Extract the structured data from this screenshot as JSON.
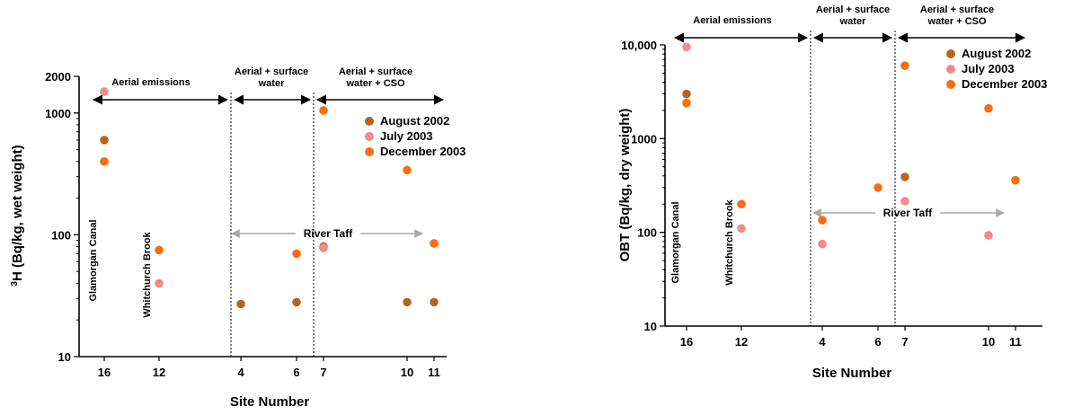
{
  "colors": {
    "august2002": "#b5651d",
    "july2003": "#f28b8b",
    "december2003": "#f86d0d",
    "axis": "#000000",
    "taff_arrow": "#a8a8a8"
  },
  "chart_data": [
    {
      "type": "scatter",
      "title": "",
      "xlabel": "Site Number",
      "ylabel_sup": "3",
      "ylabel": "H (Bq/kg, wet weight)",
      "y_scale": "log",
      "ylim": [
        10,
        2000
      ],
      "y_ticks": [
        10,
        100,
        1000,
        2000
      ],
      "y_tick_labels": [
        "10",
        "100",
        "1000",
        "2000"
      ],
      "x_ticks": [
        "16",
        "12",
        "4",
        "6",
        "7",
        "10",
        "11"
      ],
      "legend_position": "top-right",
      "legend": [
        "August 2002",
        "July 2003",
        "December 2003"
      ],
      "zones": [
        {
          "label_lines": [
            "Aerial emissions"
          ]
        },
        {
          "label_lines": [
            "Aerial + surface",
            "water"
          ]
        },
        {
          "label_lines": [
            "Aerial + surface",
            "water + CSO"
          ]
        }
      ],
      "annotations": {
        "glamorgan": "Glamorgan Canal",
        "whitchurch": "Whitchurch Brook",
        "river": "River Taff"
      },
      "series": [
        {
          "name": "August 2002",
          "points": [
            {
              "x": "16",
              "y": 600
            },
            {
              "x": "4",
              "y": 27
            },
            {
              "x": "6",
              "y": 28
            },
            {
              "x": "7",
              "y": 80
            },
            {
              "x": "10",
              "y": 28
            },
            {
              "x": "11",
              "y": 28
            }
          ]
        },
        {
          "name": "July 2003",
          "points": [
            {
              "x": "16",
              "y": 1500
            },
            {
              "x": "12",
              "y": 40
            },
            {
              "x": "7",
              "y": 78
            }
          ]
        },
        {
          "name": "December 2003",
          "points": [
            {
              "x": "16",
              "y": 400
            },
            {
              "x": "12",
              "y": 75
            },
            {
              "x": "6",
              "y": 70
            },
            {
              "x": "7",
              "y": 1050
            },
            {
              "x": "10",
              "y": 340
            },
            {
              "x": "11",
              "y": 85
            }
          ]
        }
      ]
    },
    {
      "type": "scatter",
      "title": "",
      "xlabel": "Site Number",
      "ylabel": "OBT (Bq/kg, dry weight)",
      "y_scale": "log",
      "ylim": [
        10,
        10000
      ],
      "y_ticks": [
        10,
        100,
        1000,
        10000
      ],
      "y_tick_labels": [
        "10",
        "100",
        "1000",
        "10,000"
      ],
      "x_ticks": [
        "16",
        "12",
        "4",
        "6",
        "7",
        "10",
        "11"
      ],
      "legend_position": "top-right",
      "legend": [
        "August 2002",
        "July 2003",
        "December 2003"
      ],
      "zones": [
        {
          "label_lines": [
            "Aerial emissions"
          ]
        },
        {
          "label_lines": [
            "Aerial + surface",
            "water"
          ]
        },
        {
          "label_lines": [
            "Aerial + surface",
            "water + CSO"
          ]
        }
      ],
      "annotations": {
        "glamorgan": "Glamorgan Canal",
        "whitchurch": "Whitchurch Brook",
        "river": "River Taff"
      },
      "series": [
        {
          "name": "August 2002",
          "points": [
            {
              "x": "16",
              "y": 3000
            },
            {
              "x": "7",
              "y": 390
            }
          ]
        },
        {
          "name": "July 2003",
          "points": [
            {
              "x": "16",
              "y": 9500
            },
            {
              "x": "12",
              "y": 110
            },
            {
              "x": "4",
              "y": 75
            },
            {
              "x": "7",
              "y": 215
            },
            {
              "x": "10",
              "y": 93
            }
          ]
        },
        {
          "name": "December 2003",
          "points": [
            {
              "x": "16",
              "y": 2400
            },
            {
              "x": "12",
              "y": 200
            },
            {
              "x": "4",
              "y": 135
            },
            {
              "x": "6",
              "y": 300
            },
            {
              "x": "7",
              "y": 6000
            },
            {
              "x": "10",
              "y": 2100
            },
            {
              "x": "11",
              "y": 360
            }
          ]
        }
      ]
    }
  ]
}
